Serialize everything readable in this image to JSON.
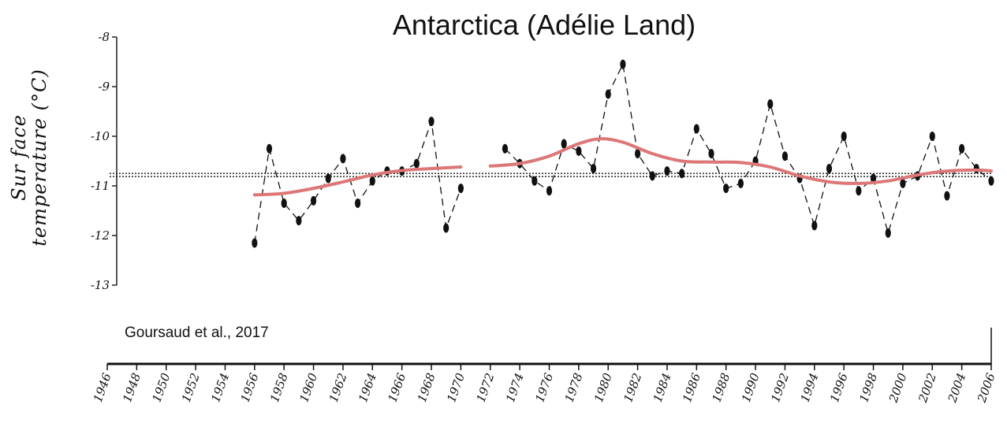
{
  "chart_data": {
    "type": "line",
    "title": "Antarctica (Adélie Land)",
    "ylabel_line1": "Sur face",
    "ylabel_line2": "temperature  (°C)",
    "xlabel": "",
    "source_note": "Goursaud et al., 2017",
    "ylim": [
      -13,
      -8
    ],
    "yticks": [
      -8,
      -9,
      -10,
      -11,
      -12,
      -13
    ],
    "xlim": [
      1946,
      2006
    ],
    "xticks": [
      1946,
      1948,
      1950,
      1952,
      1954,
      1956,
      1958,
      1960,
      1962,
      1964,
      1966,
      1968,
      1970,
      1972,
      1974,
      1976,
      1978,
      1980,
      1982,
      1984,
      1986,
      1988,
      1990,
      1992,
      1994,
      1996,
      1998,
      2000,
      2002,
      2004,
      2006
    ],
    "mean_line": -10.78,
    "grid": false,
    "legend": "none",
    "series": [
      {
        "style": "dashed-markers",
        "color": "#111111",
        "segments": [
          {
            "x": [
              1956,
              1957,
              1958,
              1959,
              1960,
              1961,
              1962,
              1963,
              1964,
              1965,
              1966,
              1967,
              1968,
              1969,
              1970
            ],
            "y": [
              -12.15,
              -10.25,
              -11.35,
              -11.7,
              -11.3,
              -10.85,
              -10.45,
              -11.35,
              -10.9,
              -10.7,
              -10.7,
              -10.55,
              -9.7,
              -11.85,
              -11.05
            ]
          },
          {
            "x": [
              1973,
              1974,
              1975,
              1976,
              1977,
              1978,
              1979,
              1980,
              1981,
              1982,
              1983,
              1984,
              1985,
              1986,
              1987,
              1988,
              1989,
              1990,
              1991,
              1992,
              1993,
              1994,
              1995,
              1996,
              1997,
              1998,
              1999,
              2000,
              2001,
              2002,
              2003,
              2004,
              2005,
              2006
            ],
            "y": [
              -10.25,
              -10.55,
              -10.9,
              -11.1,
              -10.15,
              -10.3,
              -10.65,
              -9.15,
              -8.55,
              -10.35,
              -10.8,
              -10.7,
              -10.75,
              -9.85,
              -10.35,
              -11.05,
              -10.95,
              -10.5,
              -9.35,
              -10.4,
              -10.85,
              -11.8,
              -10.65,
              -10.0,
              -11.1,
              -10.85,
              -11.95,
              -10.95,
              -10.8,
              -10.0,
              -11.2,
              -10.25,
              -10.65,
              -10.9
            ]
          }
        ]
      },
      {
        "style": "smooth",
        "color": "#dd7777",
        "segments": [
          {
            "x": [
              1956,
              1958,
              1960,
              1962,
              1964,
              1966,
              1968,
              1970
            ],
            "y": [
              -11.18,
              -11.15,
              -11.05,
              -10.92,
              -10.78,
              -10.69,
              -10.65,
              -10.62
            ]
          },
          {
            "x": [
              1972,
              1974,
              1976,
              1978,
              1979.5,
              1981,
              1983,
              1985,
              1987,
              1989,
              1991,
              1993,
              1995,
              1997,
              1999,
              2001,
              2003,
              2005,
              2006
            ],
            "y": [
              -10.6,
              -10.55,
              -10.4,
              -10.15,
              -10.05,
              -10.12,
              -10.35,
              -10.5,
              -10.52,
              -10.53,
              -10.62,
              -10.8,
              -10.92,
              -10.95,
              -10.9,
              -10.78,
              -10.7,
              -10.68,
              -10.7
            ]
          }
        ]
      }
    ]
  }
}
